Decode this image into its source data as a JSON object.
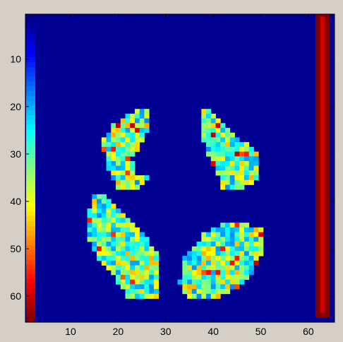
{
  "chart_data": {
    "type": "heatmap",
    "title": "",
    "xlabel": "",
    "ylabel": "",
    "xlim": [
      0.5,
      65.5
    ],
    "ylim": [
      0.5,
      65.5
    ],
    "y_direction": "reversed",
    "grid": false,
    "colormap": "jet",
    "colorbar": "embedded-left",
    "x_ticks": [
      10,
      20,
      30,
      40,
      50,
      60
    ],
    "y_ticks": [
      10,
      20,
      30,
      40,
      50,
      60
    ],
    "background_value": 0,
    "regions": [
      {
        "name": "upper-left lobe",
        "polygon": [
          [
            20.5,
            38
          ],
          [
            18,
            33
          ],
          [
            16.5,
            27.5
          ],
          [
            19,
            24
          ],
          [
            22,
            22
          ],
          [
            25,
            20.5
          ],
          [
            27,
            21
          ],
          [
            27,
            24
          ],
          [
            25,
            28
          ],
          [
            23,
            31
          ],
          [
            24,
            34
          ],
          [
            27,
            35
          ],
          [
            24,
            38
          ]
        ]
      },
      {
        "name": "upper-right lobe",
        "polygon": [
          [
            38,
            21
          ],
          [
            37.5,
            24
          ],
          [
            38.5,
            30
          ],
          [
            41,
            34
          ],
          [
            42,
            37.5
          ],
          [
            46,
            37.5
          ],
          [
            50,
            35
          ],
          [
            49,
            29.5
          ],
          [
            46,
            27
          ],
          [
            42,
            23
          ],
          [
            39,
            20.5
          ]
        ]
      },
      {
        "name": "lower-left lobe",
        "polygon": [
          [
            15,
            38.5
          ],
          [
            14,
            42
          ],
          [
            14,
            48
          ],
          [
            16.5,
            53
          ],
          [
            20,
            57
          ],
          [
            22,
            60.5
          ],
          [
            26,
            60.5
          ],
          [
            29,
            60
          ],
          [
            29,
            52
          ],
          [
            25,
            46
          ],
          [
            20,
            41
          ],
          [
            17,
            38.5
          ]
        ]
      },
      {
        "name": "lower-right lobe",
        "polygon": [
          [
            34,
            52
          ],
          [
            33,
            57
          ],
          [
            35,
            61
          ],
          [
            40,
            61
          ],
          [
            44,
            59
          ],
          [
            48,
            55.5
          ],
          [
            50.5,
            51
          ],
          [
            50.5,
            46
          ],
          [
            48,
            45
          ],
          [
            42,
            45
          ],
          [
            38,
            47
          ]
        ]
      }
    ],
    "right_border_column": {
      "x_range": [
        61.5,
        64.5
      ],
      "y_range": [
        0.5,
        64.5
      ],
      "value": 1.0,
      "inner_value": 0.92
    },
    "colors": {
      "frame": "#d4d0c8",
      "axes_edge": "#000000"
    }
  }
}
